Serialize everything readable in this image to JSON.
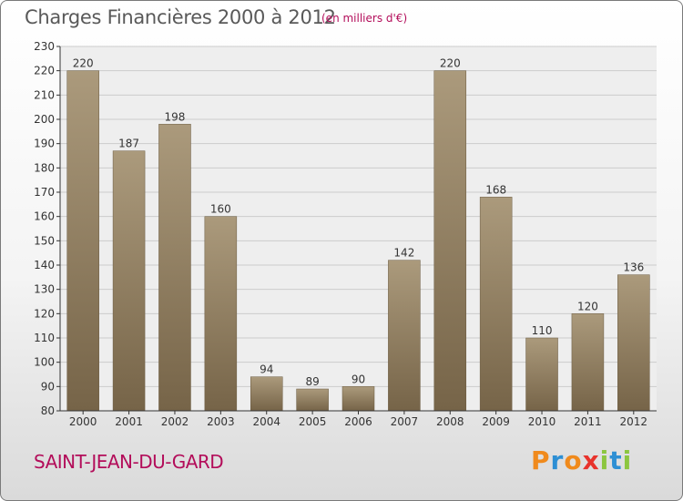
{
  "header": {
    "title": "Charges Financières 2000 à 2012",
    "subtitle": "(en milliers d'€)"
  },
  "footer": {
    "city": "SAINT-JEAN-DU-GARD",
    "brand_letters": [
      "P",
      "r",
      "o",
      "x",
      "i",
      "t",
      "i"
    ],
    "brand_colors": [
      "#f08a1c",
      "#2d8fd4",
      "#f08a1c",
      "#e8332c",
      "#8cc63f",
      "#2d8fd4",
      "#8cc63f"
    ]
  },
  "colors": {
    "bar_light": "#ab9a7c",
    "bar_dark": "#766448",
    "grid": "#cccccc",
    "axis": "#333333",
    "text": "#333333"
  },
  "chart_data": {
    "type": "bar",
    "categories": [
      "2000",
      "2001",
      "2002",
      "2003",
      "2004",
      "2005",
      "2006",
      "2007",
      "2008",
      "2009",
      "2010",
      "2011",
      "2012"
    ],
    "values": [
      220,
      187,
      198,
      160,
      94,
      89,
      90,
      142,
      220,
      168,
      110,
      120,
      136
    ],
    "title": "Charges Financières 2000 à 2012",
    "subtitle": "(en milliers d'€)",
    "xlabel": "",
    "ylabel": "",
    "ylim": [
      80,
      230
    ],
    "yticks": [
      80,
      90,
      100,
      110,
      120,
      130,
      140,
      150,
      160,
      170,
      180,
      190,
      200,
      210,
      220,
      230
    ],
    "grid": true
  }
}
